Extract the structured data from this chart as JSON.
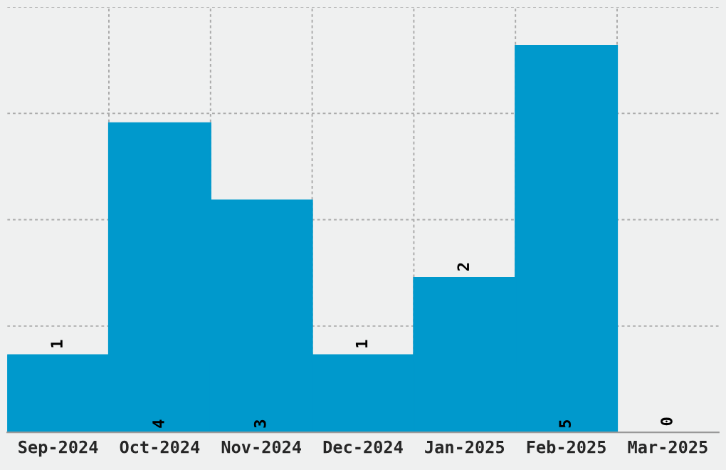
{
  "chart_data": {
    "type": "bar",
    "categories": [
      "Sep-2024",
      "Oct-2024",
      "Nov-2024",
      "Dec-2024",
      "Jan-2025",
      "Feb-2025",
      "Mar-2025"
    ],
    "values": [
      1,
      4,
      3,
      1,
      2,
      5,
      0
    ],
    "color": "#0099cc",
    "data_labels": true,
    "grid": true,
    "ylim": [
      0,
      5.5
    ],
    "yticks": [
      {
        "value": 0,
        "label": null
      },
      {
        "value": 1.375,
        "label": null
      },
      {
        "value": 2.75,
        "label": null
      },
      {
        "value": 4.125,
        "label": null
      },
      {
        "value": 5.5,
        "label": null
      }
    ],
    "tick_labels": "x"
  }
}
